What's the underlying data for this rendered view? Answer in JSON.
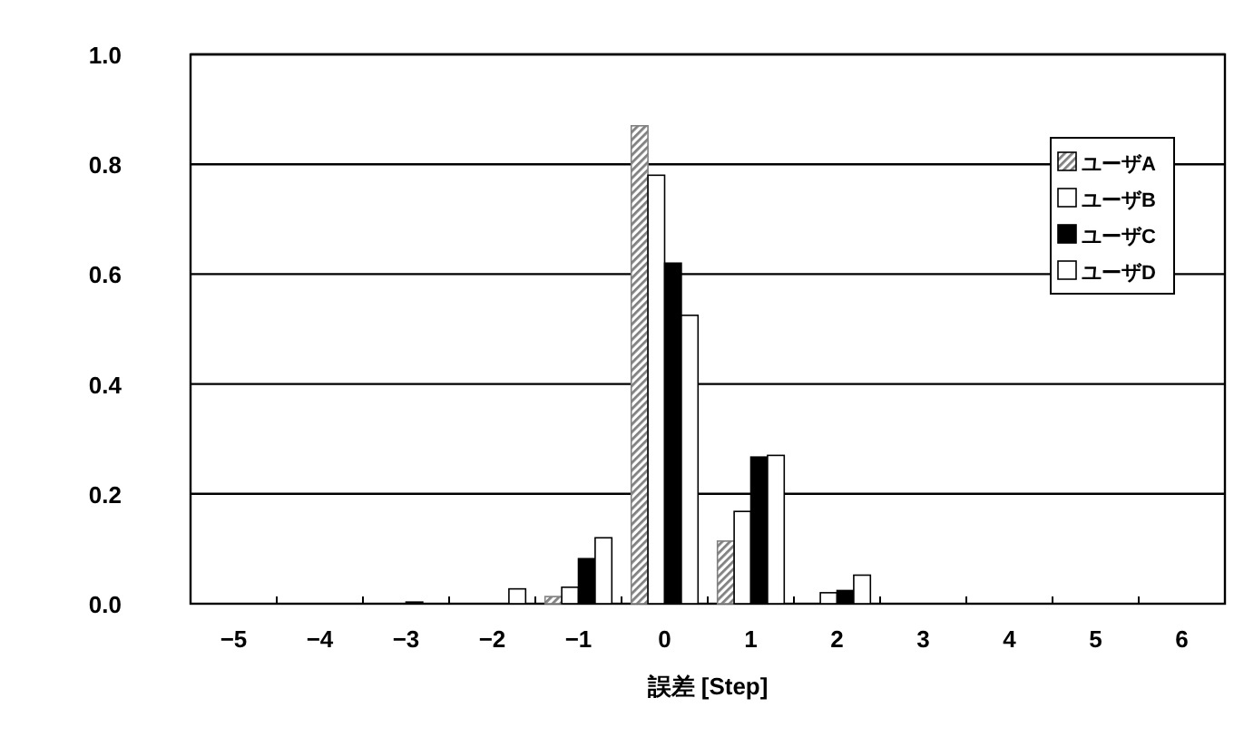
{
  "chart_data": {
    "type": "bar",
    "xlabel": "誤差 [Step]",
    "categories": [
      "−5",
      "−4",
      "−3",
      "−2",
      "−1",
      "0",
      "1",
      "2",
      "3",
      "4",
      "5",
      "6"
    ],
    "series": [
      {
        "name": "ユーザA",
        "color": "#808080",
        "values": [
          0,
          0,
          0,
          0,
          0.013,
          0.87,
          0.114,
          0,
          0,
          0,
          0,
          0
        ]
      },
      {
        "name": "ユーザB",
        "color": "#ffffff",
        "values": [
          0,
          0,
          0,
          0,
          0.03,
          0.78,
          0.168,
          0.02,
          0,
          0,
          0,
          0
        ]
      },
      {
        "name": "ユーザC",
        "color": "#000000",
        "values": [
          0,
          0,
          0.003,
          0,
          0.082,
          0.62,
          0.267,
          0.024,
          0,
          0,
          0,
          0
        ]
      },
      {
        "name": "ユーザD",
        "color": "#ffffff",
        "values": [
          0,
          0,
          0,
          0.027,
          0.12,
          0.525,
          0.27,
          0.052,
          0,
          0,
          0,
          0
        ]
      }
    ],
    "ylim": [
      0,
      1
    ],
    "yticks": [
      {
        "value": 0,
        "label": "0.0"
      },
      {
        "value": 0.2,
        "label": "0.2"
      },
      {
        "value": 0.4,
        "label": "0.4"
      },
      {
        "value": 0.6,
        "label": "0.6"
      },
      {
        "value": 0.8,
        "label": "0.8"
      },
      {
        "value": 1,
        "label": "1.0"
      }
    ],
    "grid": "y",
    "legend": "top right"
  }
}
